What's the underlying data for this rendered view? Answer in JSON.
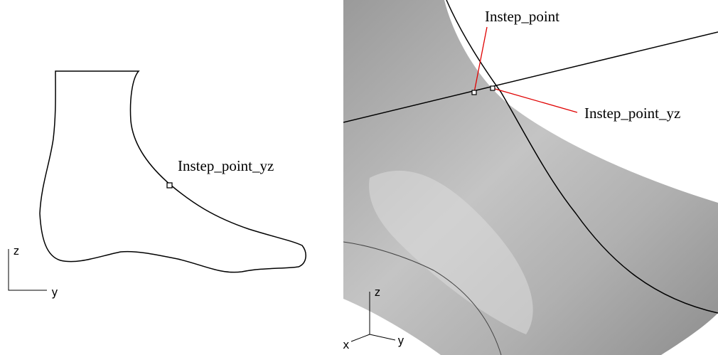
{
  "left_view": {
    "point_label": "Instep_point_yz",
    "axis_z": "z",
    "axis_y": "y"
  },
  "right_view": {
    "point_labels": [
      "Instep_point",
      "Instep_point_yz"
    ],
    "axis_z": "z",
    "axis_x": "x",
    "axis_y": "y"
  }
}
